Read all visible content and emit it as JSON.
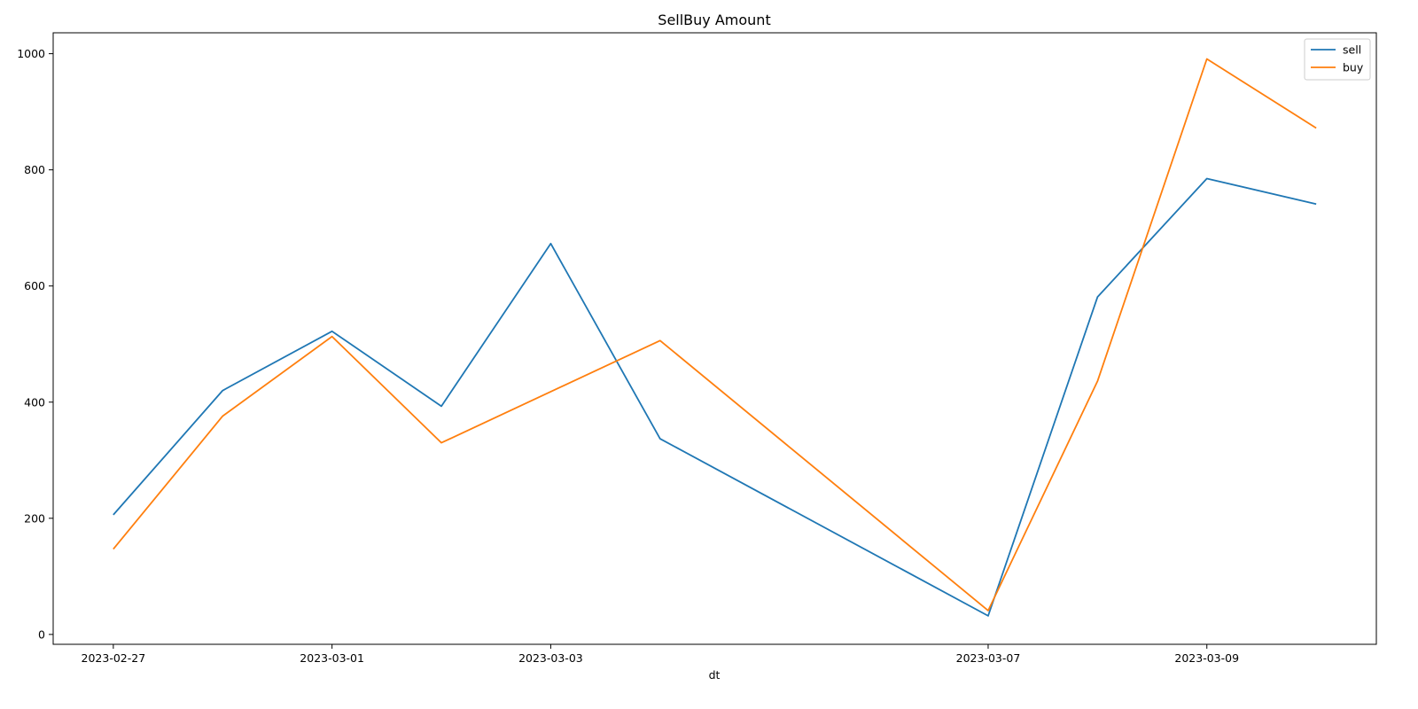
{
  "chart_data": {
    "type": "line",
    "title": "SellBuy Amount",
    "xlabel": "dt",
    "ylabel": "",
    "x": [
      "2023-02-27",
      "2023-02-28",
      "2023-03-01",
      "2023-03-02",
      "2023-03-03",
      "2023-03-04",
      "2023-03-07",
      "2023-03-08",
      "2023-03-09",
      "2023-03-10"
    ],
    "x_ticks": [
      "2023-02-27",
      "2023-03-01",
      "2023-03-03",
      "2023-03-07",
      "2023-03-09"
    ],
    "y_ticks": [
      0,
      200,
      400,
      600,
      800,
      1000
    ],
    "ylim": [
      -17,
      1036
    ],
    "grid": false,
    "legend_position": "top-right",
    "series": [
      {
        "name": "sell",
        "color": "#1f77b4",
        "values": [
          206,
          420,
          522,
          393,
          673,
          337,
          32,
          581,
          785,
          741
        ]
      },
      {
        "name": "buy",
        "color": "#ff7f0e",
        "values": [
          147,
          376,
          513,
          330,
          418,
          506,
          41,
          436,
          991,
          872
        ]
      }
    ]
  }
}
